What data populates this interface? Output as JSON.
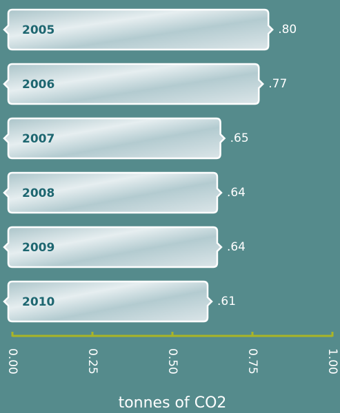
{
  "chart_data": {
    "type": "bar",
    "orientation": "horizontal",
    "categories": [
      "2005",
      "2006",
      "2007",
      "2008",
      "2009",
      "2010"
    ],
    "values": [
      0.8,
      0.77,
      0.65,
      0.64,
      0.64,
      0.61
    ],
    "value_labels": [
      ".80",
      ".77",
      ".65",
      ".64",
      ".64",
      ".61"
    ],
    "xlim": [
      0,
      1
    ],
    "xticks": [
      {
        "value": 0,
        "label": "0.00"
      },
      0.25,
      {
        "value": 0.5,
        "label": "0.50"
      },
      0.75,
      {
        "value": 1,
        "label": "1.00"
      }
    ],
    "xlabel": "tonnes of CO2",
    "color": "#dfe7ea",
    "axis_color": "#aab526"
  }
}
